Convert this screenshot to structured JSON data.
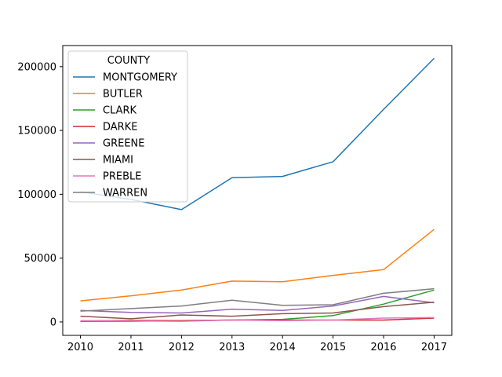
{
  "chart_data": {
    "type": "line",
    "x": [
      2010,
      2011,
      2012,
      2013,
      2014,
      2015,
      2016,
      2017
    ],
    "xticks": [
      "2010",
      "2011",
      "2012",
      "2013",
      "2014",
      "2015",
      "2016",
      "2017"
    ],
    "yticks": [
      0,
      50000,
      100000,
      150000,
      200000
    ],
    "ytick_labels": [
      "0",
      "50000",
      "100000",
      "150000",
      "200000"
    ],
    "ylim": [
      -10500,
      216500
    ],
    "xlim": [
      2009.65,
      2017.35
    ],
    "grid": false,
    "legend_title": "COUNTY",
    "legend_position": "top-left",
    "series": [
      {
        "name": "MONTGOMERY",
        "color": "#1f77b4",
        "values": [
          102000,
          96000,
          88000,
          113000,
          114000,
          125500,
          166500,
          206500
        ]
      },
      {
        "name": "BUTLER",
        "color": "#ff7f0e",
        "values": [
          16500,
          20500,
          25000,
          32000,
          31500,
          36500,
          41000,
          72500
        ]
      },
      {
        "name": "CLARK",
        "color": "#2ca02c",
        "values": [
          500,
          500,
          1000,
          1500,
          2000,
          5000,
          14000,
          25000
        ]
      },
      {
        "name": "DARKE",
        "color": "#d62728",
        "values": [
          800,
          1200,
          1000,
          1500,
          1500,
          1500,
          1500,
          3000
        ]
      },
      {
        "name": "GREENE",
        "color": "#9467bd",
        "values": [
          9000,
          7500,
          7000,
          10000,
          9000,
          12500,
          20000,
          15000
        ]
      },
      {
        "name": "MIAMI",
        "color": "#8c564b",
        "values": [
          4500,
          2500,
          5500,
          4500,
          6500,
          7000,
          12000,
          15500
        ]
      },
      {
        "name": "PREBLE",
        "color": "#e377c2",
        "values": [
          1000,
          800,
          500,
          1500,
          1000,
          1500,
          3000,
          3500
        ]
      },
      {
        "name": "WARREN",
        "color": "#7f7f7f",
        "values": [
          8500,
          10500,
          12500,
          17000,
          13000,
          13500,
          22500,
          26000
        ]
      }
    ]
  }
}
